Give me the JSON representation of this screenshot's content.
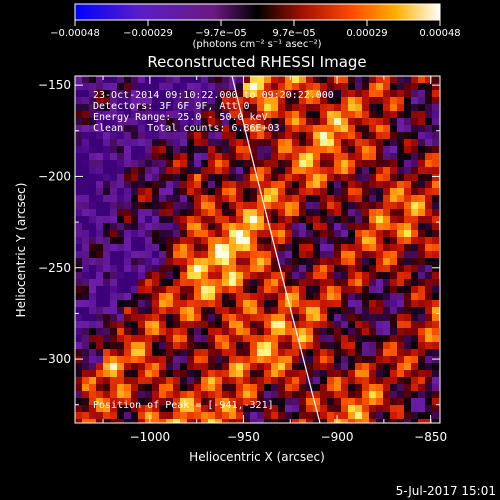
{
  "chart_data": {
    "type": "heatmap",
    "title": "Reconstructed RHESSI Image",
    "xlabel": "Heliocentric X (arcsec)",
    "ylabel": "Heliocentric Y (arcsec)",
    "xlim": [
      -1040,
      -845
    ],
    "ylim": [
      -335,
      -145
    ],
    "x_ticks": [
      -1000,
      -950,
      -900,
      -850
    ],
    "x_tick_labels": [
      "−1000",
      "−950",
      "−900",
      "−850"
    ],
    "y_ticks": [
      -150,
      -200,
      -250,
      -300
    ],
    "y_tick_labels": [
      "−150",
      "−200",
      "−250",
      "−300"
    ],
    "colorbar": {
      "min": -0.00048,
      "max": 0.00048,
      "tick_labels": [
        "−0.00048",
        "−0.00029",
        "−9.7e−05",
        "9.7e−05",
        "0.00029",
        "0.00048"
      ],
      "units_text": "(photons cm⁻² s⁻¹ asec⁻²)"
    },
    "annotations": {
      "time_range": "23-Oct-2014 09:10:22.000 to 09:20:22.000",
      "detectors": "Detectors: 3F 6F 9F, Att 0",
      "energy_range": "Energy Range: 25.0 - 50.0 keV",
      "method": "Clean    Total counts: 6.86E+03",
      "peak": "Position of Peak = [-941,-321]"
    },
    "limb_line": true,
    "grid": false
  },
  "footer": {
    "date": "5-Jul-2017 15:01"
  },
  "colors": {
    "background": "#000000",
    "axis": "#ffffff",
    "colormap": [
      "#0000ff",
      "#4d14c8",
      "#7a2896",
      "#000000",
      "#8b0000",
      "#ff4500",
      "#ffa500",
      "#ffff66",
      "#ffffff"
    ]
  }
}
